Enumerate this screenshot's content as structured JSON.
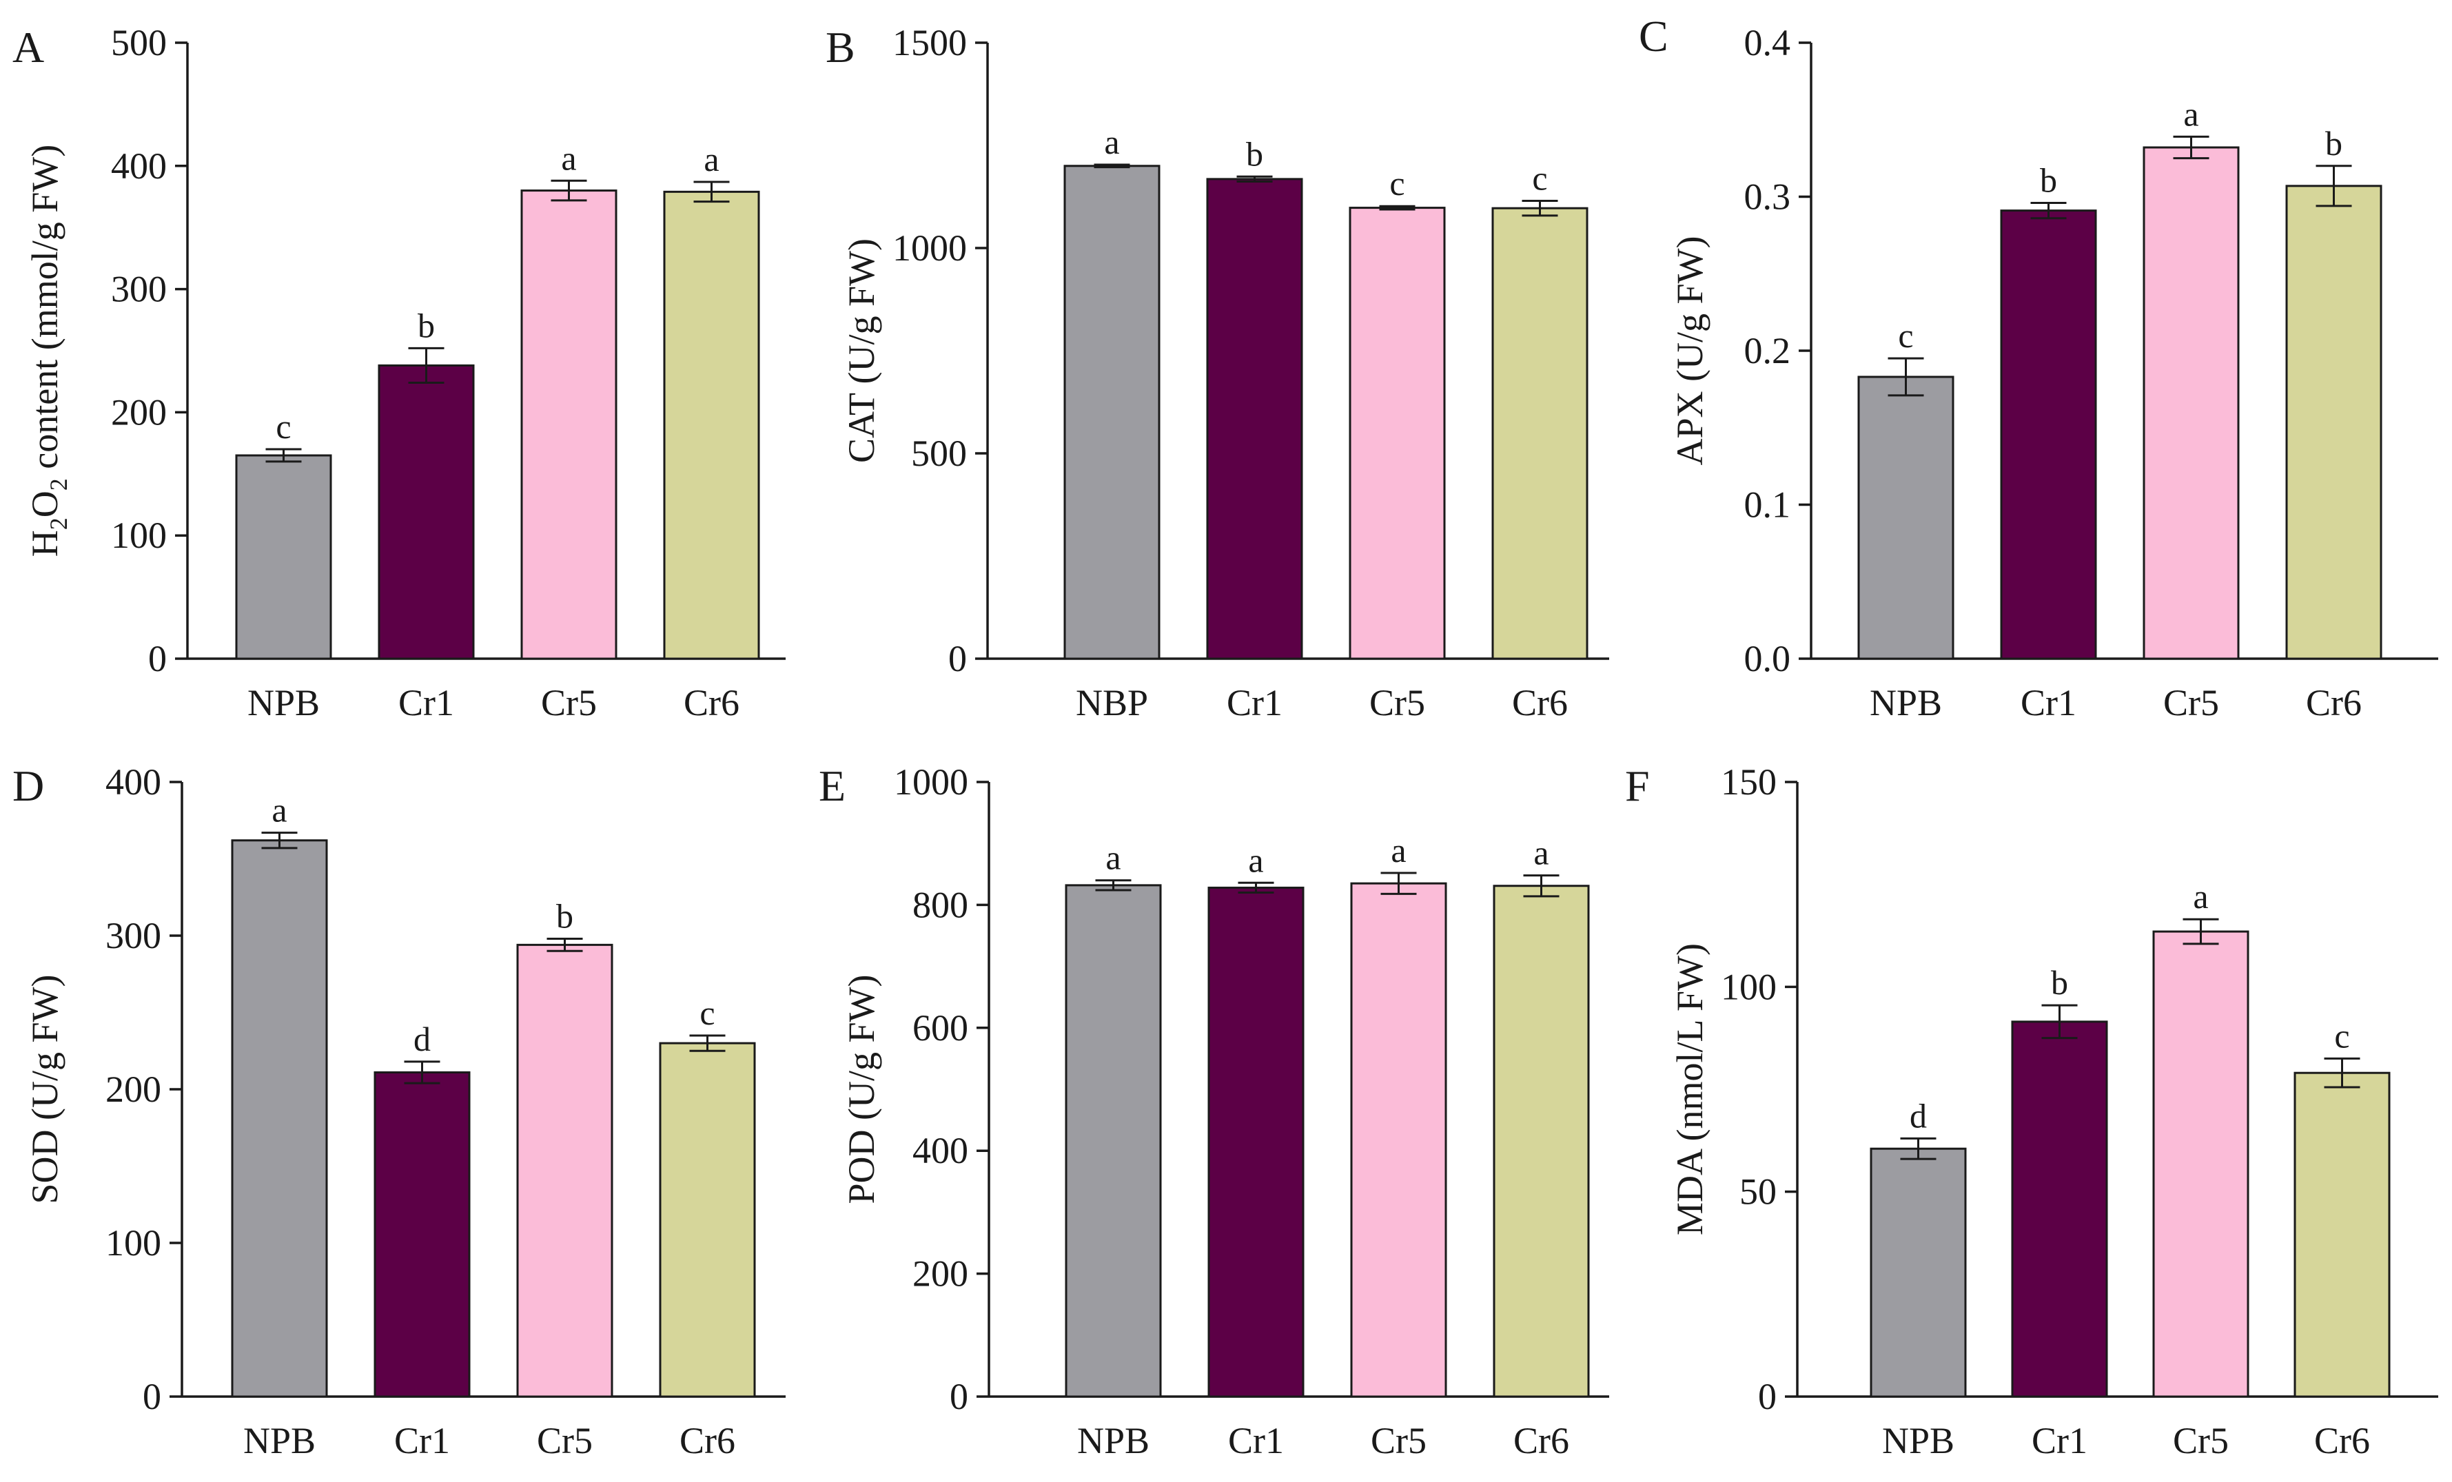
{
  "figure": {
    "colors": {
      "NPB": "#9c9ca1",
      "Cr1": "#5c0046",
      "Cr5": "#fbbcd8",
      "Cr6": "#d6d69a"
    }
  },
  "chart_data": [
    {
      "panel": "A",
      "type": "bar",
      "ylabel": "H2O2 content (mmol/g FW)",
      "ylabel_parts": {
        "pre": "H",
        "sub1": "2",
        "mid": "O",
        "sub2": "2",
        "post": " content (mmol/g FW)"
      },
      "categories": [
        "NPB",
        "Cr1",
        "Cr5",
        "Cr6"
      ],
      "values": [
        165,
        238,
        380,
        379
      ],
      "errors": [
        5,
        14,
        8,
        8
      ],
      "significance": [
        "c",
        "b",
        "a",
        "a"
      ],
      "ylim": [
        0,
        500
      ],
      "yticks": [
        "0",
        "100",
        "200",
        "300",
        "400",
        "500"
      ]
    },
    {
      "panel": "B",
      "type": "bar",
      "ylabel": "CAT (U/g FW)",
      "categories": [
        "NBP",
        "Cr1",
        "Cr5",
        "Cr6"
      ],
      "values": [
        1200,
        1168,
        1098,
        1097
      ],
      "errors": [
        3,
        6,
        4,
        18
      ],
      "significance": [
        "a",
        "b",
        "c",
        "c"
      ],
      "ylim": [
        0,
        1500
      ],
      "yticks": [
        "0",
        "500",
        "1000",
        "1500"
      ]
    },
    {
      "panel": "C",
      "type": "bar",
      "ylabel": "APX (U/g FW)",
      "categories": [
        "NPB",
        "Cr1",
        "Cr5",
        "Cr6"
      ],
      "values": [
        0.183,
        0.291,
        0.332,
        0.307
      ],
      "errors": [
        0.012,
        0.005,
        0.007,
        0.013
      ],
      "significance": [
        "c",
        "b",
        "a",
        "b"
      ],
      "ylim": [
        0,
        0.4
      ],
      "yticks": [
        "0.0",
        "0.1",
        "0.2",
        "0.3",
        "0.4"
      ]
    },
    {
      "panel": "D",
      "type": "bar",
      "ylabel": "SOD (U/g FW)",
      "categories": [
        "NPB",
        "Cr1",
        "Cr5",
        "Cr6"
      ],
      "values": [
        362,
        211,
        294,
        230
      ],
      "errors": [
        5,
        7,
        4,
        5
      ],
      "significance": [
        "a",
        "d",
        "b",
        "c"
      ],
      "ylim": [
        0,
        400
      ],
      "yticks": [
        "0",
        "100",
        "200",
        "300",
        "400"
      ]
    },
    {
      "panel": "E",
      "type": "bar",
      "ylabel": "POD (U/g FW)",
      "categories": [
        "NPB",
        "Cr1",
        "Cr5",
        "Cr6"
      ],
      "values": [
        832,
        828,
        835,
        831
      ],
      "errors": [
        8,
        8,
        17,
        17
      ],
      "significance": [
        "a",
        "a",
        "a",
        "a"
      ],
      "ylim": [
        0,
        1000
      ],
      "yticks": [
        "0",
        "200",
        "400",
        "600",
        "800",
        "1000"
      ]
    },
    {
      "panel": "F",
      "type": "bar",
      "ylabel": "MDA (nmol/L FW)",
      "categories": [
        "NPB",
        "Cr1",
        "Cr5",
        "Cr6"
      ],
      "values": [
        60.5,
        91.5,
        113.5,
        79
      ],
      "errors": [
        2.5,
        4,
        3,
        3.5
      ],
      "significance": [
        "d",
        "b",
        "a",
        "c"
      ],
      "ylim": [
        0,
        150
      ],
      "yticks": [
        "0",
        "50",
        "100",
        "150"
      ]
    }
  ]
}
